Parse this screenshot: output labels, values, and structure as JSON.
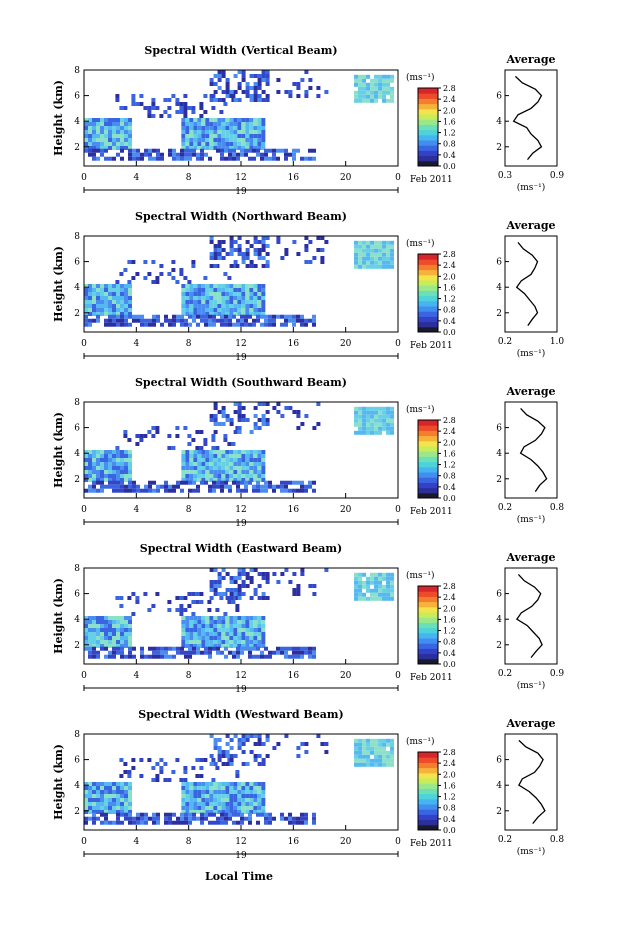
{
  "figure": {
    "month_label": "Feb 2011",
    "day_label": "19",
    "xlabel": "Local Time",
    "units_label": "(ms⁻¹)",
    "colorbar_ticks": [
      "0.0",
      "0.4",
      "0.8",
      "1.2",
      "1.6",
      "2.0",
      "2.4",
      "2.8"
    ],
    "colorbar_colors": [
      "#1a1a2e",
      "#2b2f9a",
      "#3340c8",
      "#3a64e0",
      "#3f8ef0",
      "#45b4f0",
      "#4fd3da",
      "#6ae0b8",
      "#9be88a",
      "#c9ec5a",
      "#f2e44a",
      "#f7b23a",
      "#f57e2e",
      "#ee4b2a",
      "#d7262a"
    ],
    "average_title": "Average",
    "average_xlabel": "(ms⁻¹)"
  },
  "chart_data": [
    {
      "type": "heatmap",
      "title": "Spectral Width (Vertical Beam)",
      "xlabel": "",
      "ylabel": "Height (km)",
      "xlim": [
        0,
        24
      ],
      "ylim": [
        0.5,
        8
      ],
      "xticks": [
        "0",
        "4",
        "8",
        "12",
        "16",
        "20",
        "0"
      ],
      "yticks": [
        "2",
        "4",
        "6",
        "8"
      ],
      "average_profile": {
        "xlim": [
          0.3,
          0.9
        ],
        "xticks": [
          "0.3",
          "0.9"
        ],
        "height": [
          1.0,
          1.5,
          2.0,
          2.5,
          3.0,
          3.5,
          4.0,
          4.5,
          5.0,
          5.5,
          6.0,
          6.5,
          7.0,
          7.5
        ],
        "value": [
          0.56,
          0.62,
          0.72,
          0.68,
          0.6,
          0.55,
          0.4,
          0.45,
          0.6,
          0.68,
          0.72,
          0.65,
          0.5,
          0.42
        ]
      }
    },
    {
      "type": "heatmap",
      "title": "Spectral Width (Northward Beam)",
      "xlabel": "",
      "ylabel": "Height (km)",
      "xlim": [
        0,
        24
      ],
      "ylim": [
        0.5,
        8
      ],
      "xticks": [
        "0",
        "4",
        "8",
        "12",
        "16",
        "20",
        "0"
      ],
      "yticks": [
        "2",
        "4",
        "6",
        "8"
      ],
      "average_profile": {
        "xlim": [
          0.2,
          1.0
        ],
        "xticks": [
          "0.2",
          "1.0"
        ],
        "height": [
          1.0,
          1.5,
          2.0,
          2.5,
          3.0,
          3.5,
          4.0,
          4.5,
          5.0,
          5.5,
          6.0,
          6.5,
          7.0,
          7.5
        ],
        "value": [
          0.55,
          0.62,
          0.7,
          0.66,
          0.58,
          0.5,
          0.38,
          0.45,
          0.6,
          0.66,
          0.7,
          0.62,
          0.48,
          0.4
        ]
      }
    },
    {
      "type": "heatmap",
      "title": "Spectral Width (Southward Beam)",
      "xlabel": "",
      "ylabel": "Height (km)",
      "xlim": [
        0,
        24
      ],
      "ylim": [
        0.5,
        8
      ],
      "xticks": [
        "0",
        "4",
        "8",
        "12",
        "16",
        "20",
        "0"
      ],
      "yticks": [
        "2",
        "4",
        "6",
        "8"
      ],
      "average_profile": {
        "xlim": [
          0.2,
          0.8
        ],
        "xticks": [
          "0.2",
          "0.8"
        ],
        "height": [
          1.0,
          1.5,
          2.0,
          2.5,
          3.0,
          3.5,
          4.0,
          4.5,
          5.0,
          5.5,
          6.0,
          6.5,
          7.0,
          7.5
        ],
        "value": [
          0.55,
          0.6,
          0.68,
          0.64,
          0.58,
          0.5,
          0.38,
          0.42,
          0.55,
          0.62,
          0.66,
          0.58,
          0.45,
          0.38
        ]
      }
    },
    {
      "type": "heatmap",
      "title": "Spectral Width (Eastward Beam)",
      "xlabel": "",
      "ylabel": "Height (km)",
      "xlim": [
        0,
        24
      ],
      "ylim": [
        0.5,
        8
      ],
      "xticks": [
        "0",
        "4",
        "8",
        "12",
        "16",
        "20",
        "0"
      ],
      "yticks": [
        "2",
        "4",
        "6",
        "8"
      ],
      "average_profile": {
        "xlim": [
          0.2,
          0.9
        ],
        "xticks": [
          "0.2",
          "0.9"
        ],
        "height": [
          1.0,
          1.5,
          2.0,
          2.5,
          3.0,
          3.5,
          4.0,
          4.5,
          5.0,
          5.5,
          6.0,
          6.5,
          7.0,
          7.5
        ],
        "value": [
          0.55,
          0.62,
          0.7,
          0.66,
          0.58,
          0.5,
          0.36,
          0.42,
          0.56,
          0.64,
          0.68,
          0.6,
          0.46,
          0.38
        ]
      }
    },
    {
      "type": "heatmap",
      "title": "Spectral Width (Westward Beam)",
      "xlabel": "",
      "ylabel": "Height (km)",
      "xlim": [
        0,
        24
      ],
      "ylim": [
        0.5,
        8
      ],
      "xticks": [
        "0",
        "4",
        "8",
        "12",
        "16",
        "20",
        "0"
      ],
      "yticks": [
        "2",
        "4",
        "6",
        "8"
      ],
      "average_profile": {
        "xlim": [
          0.2,
          0.8
        ],
        "xticks": [
          "0.2",
          "0.8"
        ],
        "height": [
          1.0,
          1.5,
          2.0,
          2.5,
          3.0,
          3.5,
          4.0,
          4.5,
          5.0,
          5.5,
          6.0,
          6.5,
          7.0,
          7.5
        ],
        "value": [
          0.52,
          0.58,
          0.66,
          0.62,
          0.56,
          0.48,
          0.36,
          0.4,
          0.54,
          0.6,
          0.64,
          0.58,
          0.44,
          0.36
        ]
      }
    }
  ]
}
